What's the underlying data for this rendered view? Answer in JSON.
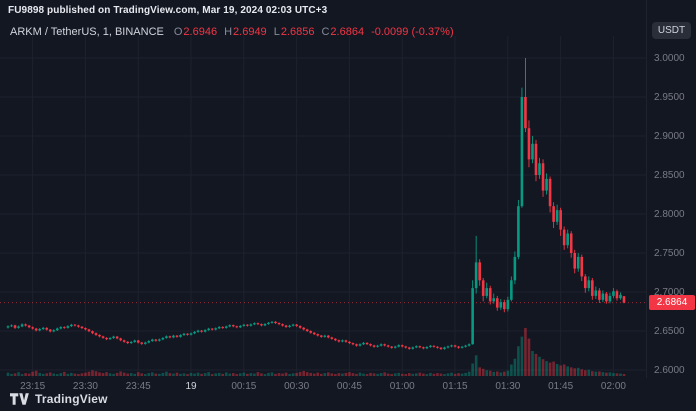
{
  "publish_note": "FU9898 published on TradingView.com, Mar 19, 2024 02:03 UTC+3",
  "legend": {
    "symbol": "ARKM / TetherUS, 1, BINANCE",
    "items": [
      {
        "label": "O",
        "value": "2.6946"
      },
      {
        "label": "H",
        "value": "2.6949"
      },
      {
        "label": "L",
        "value": "2.6856"
      },
      {
        "label": "C",
        "value": "2.6864"
      }
    ],
    "change": "-0.0099 (-0.37%)"
  },
  "price_axis": {
    "unit_label": "USDT",
    "tick_labels": [
      "3.0000",
      "2.9500",
      "2.9000",
      "2.8500",
      "2.8000",
      "2.7500",
      "2.7000",
      "2.6500",
      "2.6000"
    ],
    "last_price_label": "2.6864"
  },
  "time_axis": {
    "ticks": [
      {
        "label": "23:15",
        "index": 7,
        "major": false
      },
      {
        "label": "23:30",
        "index": 22,
        "major": false
      },
      {
        "label": "23:45",
        "index": 37,
        "major": false
      },
      {
        "label": "19",
        "index": 52,
        "major": true
      },
      {
        "label": "00:15",
        "index": 67,
        "major": false
      },
      {
        "label": "00:30",
        "index": 82,
        "major": false
      },
      {
        "label": "00:45",
        "index": 97,
        "major": false
      },
      {
        "label": "01:00",
        "index": 112,
        "major": false
      },
      {
        "label": "01:15",
        "index": 127,
        "major": false
      },
      {
        "label": "01:30",
        "index": 142,
        "major": false
      },
      {
        "label": "01:45",
        "index": 157,
        "major": false
      },
      {
        "label": "02:00",
        "index": 172,
        "major": false
      }
    ]
  },
  "branding": {
    "name": "TradingView"
  },
  "colors": {
    "background": "#131722",
    "grid": "#1e222d",
    "up": "#089981",
    "down": "#f23645",
    "volume_up": "rgba(8,153,129,0.45)",
    "volume_down": "rgba(242,54,69,0.45)",
    "axis_text": "#787b86",
    "text": "#d1d4dc",
    "badge_bg": "#f23645",
    "badge_text": "#ffffff"
  },
  "chart_data": {
    "type": "candlestick",
    "title": "ARKM / TetherUS, 1, BINANCE",
    "symbol": "ARKM/USDT",
    "exchange": "BINANCE",
    "interval_minutes": 1,
    "quote_unit": "USDT",
    "start_time": "23:08",
    "end_time": "02:03",
    "grid": true,
    "y_ticks": [
      2.6,
      2.65,
      2.7,
      2.75,
      2.8,
      2.85,
      2.9,
      2.95,
      3.0
    ],
    "ylim": [
      2.575,
      3.02
    ],
    "last_price": 2.6864,
    "prev_close": 2.6963,
    "change": -0.0099,
    "change_pct": -0.37,
    "current_candle": {
      "open": 2.6946,
      "high": 2.6949,
      "low": 2.6856,
      "close": 2.6864
    },
    "ohlc_format": [
      "open",
      "high",
      "low",
      "close"
    ],
    "ohlc": [
      [
        2.6545,
        2.6572,
        2.6532,
        2.656
      ],
      [
        2.656,
        2.6585,
        2.6551,
        2.6572
      ],
      [
        2.6572,
        2.658,
        2.6528,
        2.6541
      ],
      [
        2.6541,
        2.657,
        2.653,
        2.6558
      ],
      [
        2.6558,
        2.6598,
        2.6549,
        2.6585
      ],
      [
        2.6585,
        2.6596,
        2.6558,
        2.657
      ],
      [
        2.657,
        2.6578,
        2.6536,
        2.6548
      ],
      [
        2.6548,
        2.6558,
        2.6519,
        2.6531
      ],
      [
        2.6531,
        2.654,
        2.6495,
        2.6508
      ],
      [
        2.6508,
        2.6537,
        2.6497,
        2.6525
      ],
      [
        2.6525,
        2.6552,
        2.6514,
        2.654
      ],
      [
        2.654,
        2.6548,
        2.6505,
        2.6518
      ],
      [
        2.6518,
        2.6526,
        2.6482,
        2.6495
      ],
      [
        2.6495,
        2.6522,
        2.6484,
        2.651
      ],
      [
        2.651,
        2.6544,
        2.65,
        2.6532
      ],
      [
        2.6532,
        2.6562,
        2.6521,
        2.655
      ],
      [
        2.655,
        2.656,
        2.6529,
        2.6541
      ],
      [
        2.6541,
        2.6574,
        2.6531,
        2.6562
      ],
      [
        2.6562,
        2.6592,
        2.6551,
        2.658
      ],
      [
        2.658,
        2.659,
        2.6558,
        2.6571
      ],
      [
        2.6571,
        2.658,
        2.6543,
        2.6555
      ],
      [
        2.6555,
        2.6563,
        2.6525,
        2.6538
      ],
      [
        2.6538,
        2.6546,
        2.6508,
        2.652
      ],
      [
        2.652,
        2.6528,
        2.6486,
        2.6498
      ],
      [
        2.6498,
        2.6506,
        2.646,
        2.6472
      ],
      [
        2.6472,
        2.648,
        2.6438,
        2.645
      ],
      [
        2.645,
        2.6458,
        2.6419,
        2.6431
      ],
      [
        2.6431,
        2.6439,
        2.64,
        2.6412
      ],
      [
        2.6412,
        2.642,
        2.6383,
        2.6395
      ],
      [
        2.6395,
        2.6421,
        2.6385,
        2.641
      ],
      [
        2.641,
        2.6439,
        2.6399,
        2.6428
      ],
      [
        2.6428,
        2.6436,
        2.6393,
        2.6405
      ],
      [
        2.6405,
        2.6413,
        2.6369,
        2.6381
      ],
      [
        2.6381,
        2.6389,
        2.635,
        2.6362
      ],
      [
        2.6362,
        2.637,
        2.6333,
        2.6345
      ],
      [
        2.6345,
        2.6371,
        2.6335,
        2.636
      ],
      [
        2.636,
        2.6389,
        2.635,
        2.6378
      ],
      [
        2.6378,
        2.6386,
        2.634,
        2.6352
      ],
      [
        2.6352,
        2.636,
        2.6322,
        2.6335
      ],
      [
        2.6335,
        2.6363,
        2.6325,
        2.6352
      ],
      [
        2.6352,
        2.6382,
        2.6342,
        2.6371
      ],
      [
        2.6371,
        2.6401,
        2.6361,
        2.639
      ],
      [
        2.639,
        2.6398,
        2.6363,
        2.6375
      ],
      [
        2.6375,
        2.6403,
        2.6365,
        2.6392
      ],
      [
        2.6392,
        2.6422,
        2.6382,
        2.6411
      ],
      [
        2.6411,
        2.6443,
        2.6401,
        2.6432
      ],
      [
        2.6432,
        2.644,
        2.6406,
        2.6418
      ],
      [
        2.6418,
        2.6451,
        2.6408,
        2.644
      ],
      [
        2.644,
        2.6448,
        2.6413,
        2.6425
      ],
      [
        2.6425,
        2.6459,
        2.6415,
        2.6448
      ],
      [
        2.6448,
        2.6476,
        2.6438,
        2.6465
      ],
      [
        2.6465,
        2.6473,
        2.644,
        2.6452
      ],
      [
        2.6452,
        2.6481,
        2.6442,
        2.647
      ],
      [
        2.647,
        2.6499,
        2.646,
        2.6488
      ],
      [
        2.6488,
        2.6516,
        2.6478,
        2.6505
      ],
      [
        2.6505,
        2.6513,
        2.6479,
        2.6491
      ],
      [
        2.6491,
        2.6523,
        2.6481,
        2.6512
      ],
      [
        2.6512,
        2.6541,
        2.6502,
        2.653
      ],
      [
        2.653,
        2.6538,
        2.6506,
        2.6518
      ],
      [
        2.6518,
        2.6546,
        2.6508,
        2.6535
      ],
      [
        2.6535,
        2.6563,
        2.6525,
        2.6552
      ],
      [
        2.6552,
        2.656,
        2.6528,
        2.654
      ],
      [
        2.654,
        2.6569,
        2.653,
        2.6558
      ],
      [
        2.6558,
        2.6586,
        2.6548,
        2.6575
      ],
      [
        2.6575,
        2.6583,
        2.6548,
        2.656
      ],
      [
        2.656,
        2.6568,
        2.6536,
        2.6548
      ],
      [
        2.6548,
        2.6576,
        2.6538,
        2.6565
      ],
      [
        2.6565,
        2.6591,
        2.6555,
        2.658
      ],
      [
        2.658,
        2.6588,
        2.6556,
        2.6568
      ],
      [
        2.6568,
        2.6596,
        2.6558,
        2.6585
      ],
      [
        2.6585,
        2.6611,
        2.6575,
        2.66
      ],
      [
        2.66,
        2.6608,
        2.6576,
        2.6588
      ],
      [
        2.6588,
        2.6596,
        2.656,
        2.6572
      ],
      [
        2.6572,
        2.6601,
        2.6562,
        2.659
      ],
      [
        2.659,
        2.6616,
        2.658,
        2.6605
      ],
      [
        2.6605,
        2.6629,
        2.6595,
        2.6618
      ],
      [
        2.6618,
        2.6626,
        2.659,
        2.6602
      ],
      [
        2.6602,
        2.661,
        2.6576,
        2.6588
      ],
      [
        2.6588,
        2.6596,
        2.6558,
        2.657
      ],
      [
        2.657,
        2.6578,
        2.654,
        2.6552
      ],
      [
        2.6552,
        2.6579,
        2.6542,
        2.6568
      ],
      [
        2.6568,
        2.6593,
        2.6558,
        2.6582
      ],
      [
        2.6582,
        2.659,
        2.6553,
        2.6565
      ],
      [
        2.6565,
        2.6573,
        2.653,
        2.6542
      ],
      [
        2.6542,
        2.655,
        2.6508,
        2.652
      ],
      [
        2.652,
        2.6528,
        2.6488,
        2.65
      ],
      [
        2.65,
        2.6508,
        2.6466,
        2.6478
      ],
      [
        2.6478,
        2.6486,
        2.6448,
        2.646
      ],
      [
        2.646,
        2.6468,
        2.643,
        2.6442
      ],
      [
        2.6442,
        2.645,
        2.6413,
        2.6425
      ],
      [
        2.6425,
        2.6451,
        2.6415,
        2.644
      ],
      [
        2.644,
        2.6448,
        2.6406,
        2.6418
      ],
      [
        2.6418,
        2.6426,
        2.6388,
        2.64
      ],
      [
        2.64,
        2.6408,
        2.637,
        2.6382
      ],
      [
        2.6382,
        2.639,
        2.6353,
        2.6365
      ],
      [
        2.6365,
        2.6391,
        2.6355,
        2.638
      ],
      [
        2.638,
        2.6388,
        2.635,
        2.6362
      ],
      [
        2.6362,
        2.637,
        2.6333,
        2.6345
      ],
      [
        2.6345,
        2.6353,
        2.6318,
        2.633
      ],
      [
        2.633,
        2.6338,
        2.63,
        2.6312
      ],
      [
        2.6312,
        2.6341,
        2.6302,
        2.633
      ],
      [
        2.633,
        2.6359,
        2.632,
        2.6348
      ],
      [
        2.6348,
        2.6356,
        2.632,
        2.6332
      ],
      [
        2.6332,
        2.634,
        2.6303,
        2.6315
      ],
      [
        2.6315,
        2.6323,
        2.6286,
        2.6298
      ],
      [
        2.6298,
        2.6323,
        2.6288,
        2.6312
      ],
      [
        2.6312,
        2.6341,
        2.6302,
        2.633
      ],
      [
        2.633,
        2.6338,
        2.6303,
        2.6315
      ],
      [
        2.6315,
        2.6323,
        2.6288,
        2.63
      ],
      [
        2.63,
        2.6308,
        2.6273,
        2.6285
      ],
      [
        2.6285,
        2.6311,
        2.6275,
        2.63
      ],
      [
        2.63,
        2.6329,
        2.629,
        2.6318
      ],
      [
        2.6318,
        2.6326,
        2.629,
        2.6302
      ],
      [
        2.6302,
        2.631,
        2.6276,
        2.6288
      ],
      [
        2.6288,
        2.6296,
        2.626,
        2.6272
      ],
      [
        2.6272,
        2.6301,
        2.6262,
        2.629
      ],
      [
        2.629,
        2.6316,
        2.628,
        2.6305
      ],
      [
        2.6305,
        2.6313,
        2.628,
        2.6292
      ],
      [
        2.6292,
        2.63,
        2.6266,
        2.6278
      ],
      [
        2.6278,
        2.6306,
        2.6268,
        2.6295
      ],
      [
        2.6295,
        2.6321,
        2.6285,
        2.631
      ],
      [
        2.631,
        2.6318,
        2.6286,
        2.6298
      ],
      [
        2.6298,
        2.6306,
        2.6273,
        2.6285
      ],
      [
        2.6285,
        2.6293,
        2.6258,
        2.627
      ],
      [
        2.627,
        2.6299,
        2.626,
        2.6288
      ],
      [
        2.6288,
        2.6313,
        2.6278,
        2.6302
      ],
      [
        2.6302,
        2.6326,
        2.6292,
        2.6315
      ],
      [
        2.6315,
        2.6323,
        2.6288,
        2.63
      ],
      [
        2.63,
        2.6308,
        2.6273,
        2.6285
      ],
      [
        2.6285,
        2.6309,
        2.6275,
        2.6298
      ],
      [
        2.6298,
        2.6323,
        2.6288,
        2.6312
      ],
      [
        2.6312,
        2.6341,
        2.6302,
        2.633
      ],
      [
        2.633,
        2.715,
        2.6325,
        2.705
      ],
      [
        2.705,
        2.772,
        2.698,
        2.738
      ],
      [
        2.738,
        2.742,
        2.708,
        2.715
      ],
      [
        2.715,
        2.718,
        2.688,
        2.695
      ],
      [
        2.695,
        2.712,
        2.692,
        2.705
      ],
      [
        2.705,
        2.708,
        2.684,
        2.688
      ],
      [
        2.688,
        2.698,
        2.685,
        2.692
      ],
      [
        2.692,
        2.695,
        2.676,
        2.68
      ],
      [
        2.68,
        2.691,
        2.677,
        2.687
      ],
      [
        2.687,
        2.69,
        2.674,
        2.678
      ],
      [
        2.678,
        2.694,
        2.675,
        2.69
      ],
      [
        2.69,
        2.72,
        2.688,
        2.715
      ],
      [
        2.715,
        2.752,
        2.71,
        2.745
      ],
      [
        2.745,
        2.818,
        2.742,
        2.81
      ],
      [
        2.81,
        2.962,
        2.808,
        2.95
      ],
      [
        2.95,
        3.0,
        2.905,
        2.91
      ],
      [
        2.91,
        2.92,
        2.86,
        2.87
      ],
      [
        2.87,
        2.9,
        2.865,
        2.89
      ],
      [
        2.89,
        2.895,
        2.842,
        2.85
      ],
      [
        2.85,
        2.872,
        2.845,
        2.865
      ],
      [
        2.865,
        2.87,
        2.822,
        2.83
      ],
      [
        2.83,
        2.852,
        2.825,
        2.845
      ],
      [
        2.845,
        2.848,
        2.802,
        2.81
      ],
      [
        2.81,
        2.815,
        2.782,
        2.79
      ],
      [
        2.79,
        2.812,
        2.786,
        2.805
      ],
      [
        2.805,
        2.808,
        2.772,
        2.78
      ],
      [
        2.78,
        2.784,
        2.754,
        2.76
      ],
      [
        2.76,
        2.78,
        2.756,
        2.775
      ],
      [
        2.775,
        2.778,
        2.744,
        2.75
      ],
      [
        2.75,
        2.754,
        2.724,
        2.73
      ],
      [
        2.73,
        2.75,
        2.726,
        2.745
      ],
      [
        2.745,
        2.748,
        2.714,
        2.72
      ],
      [
        2.72,
        2.723,
        2.699,
        2.705
      ],
      [
        2.705,
        2.72,
        2.701,
        2.715
      ],
      [
        2.715,
        2.718,
        2.69,
        2.695
      ],
      [
        2.695,
        2.707,
        2.691,
        2.702
      ],
      [
        2.702,
        2.705,
        2.686,
        2.69
      ],
      [
        2.69,
        2.702,
        2.687,
        2.698
      ],
      [
        2.698,
        2.7,
        2.685,
        2.688
      ],
      [
        2.688,
        2.699,
        2.6855,
        2.695
      ],
      [
        2.695,
        2.705,
        2.692,
        2.701
      ],
      [
        2.701,
        2.703,
        2.689,
        2.692
      ],
      [
        2.692,
        2.6995,
        2.69,
        2.6963
      ],
      [
        2.6946,
        2.6949,
        2.6856,
        2.6864
      ]
    ],
    "volume": [
      70,
      45,
      55,
      80,
      40,
      60,
      50,
      90,
      110,
      65,
      45,
      55,
      75,
      50,
      40,
      60,
      85,
      45,
      65,
      50,
      40,
      55,
      70,
      90,
      120,
      100,
      75,
      60,
      80,
      55,
      45,
      65,
      95,
      70,
      50,
      60,
      45,
      80,
      55,
      40,
      60,
      75,
      50,
      45,
      65,
      90,
      60,
      50,
      70,
      45,
      55,
      40,
      65,
      50,
      70,
      45,
      60,
      80,
      40,
      55,
      65,
      45,
      75,
      50,
      60,
      40,
      55,
      70,
      45,
      60,
      50,
      80,
      55,
      40,
      65,
      75,
      45,
      60,
      50,
      70,
      40,
      55,
      65,
      85,
      105,
      80,
      65,
      50,
      70,
      45,
      60,
      75,
      55,
      40,
      60,
      50,
      65,
      80,
      60,
      45,
      70,
      50,
      40,
      65,
      55,
      45,
      60,
      75,
      50,
      40,
      55,
      65,
      45,
      40,
      60,
      45,
      55,
      70,
      50,
      40,
      65,
      45,
      60,
      50,
      40,
      55,
      70,
      45,
      60,
      50,
      65,
      90,
      260,
      430,
      180,
      150,
      120,
      110,
      85,
      95,
      75,
      90,
      110,
      240,
      360,
      620,
      820,
      1000,
      780,
      520,
      460,
      400,
      350,
      310,
      280,
      300,
      250,
      220,
      240,
      200,
      180,
      160,
      170,
      140,
      120,
      130,
      100,
      90,
      95,
      80,
      70,
      75,
      60,
      55,
      50,
      42
    ]
  }
}
